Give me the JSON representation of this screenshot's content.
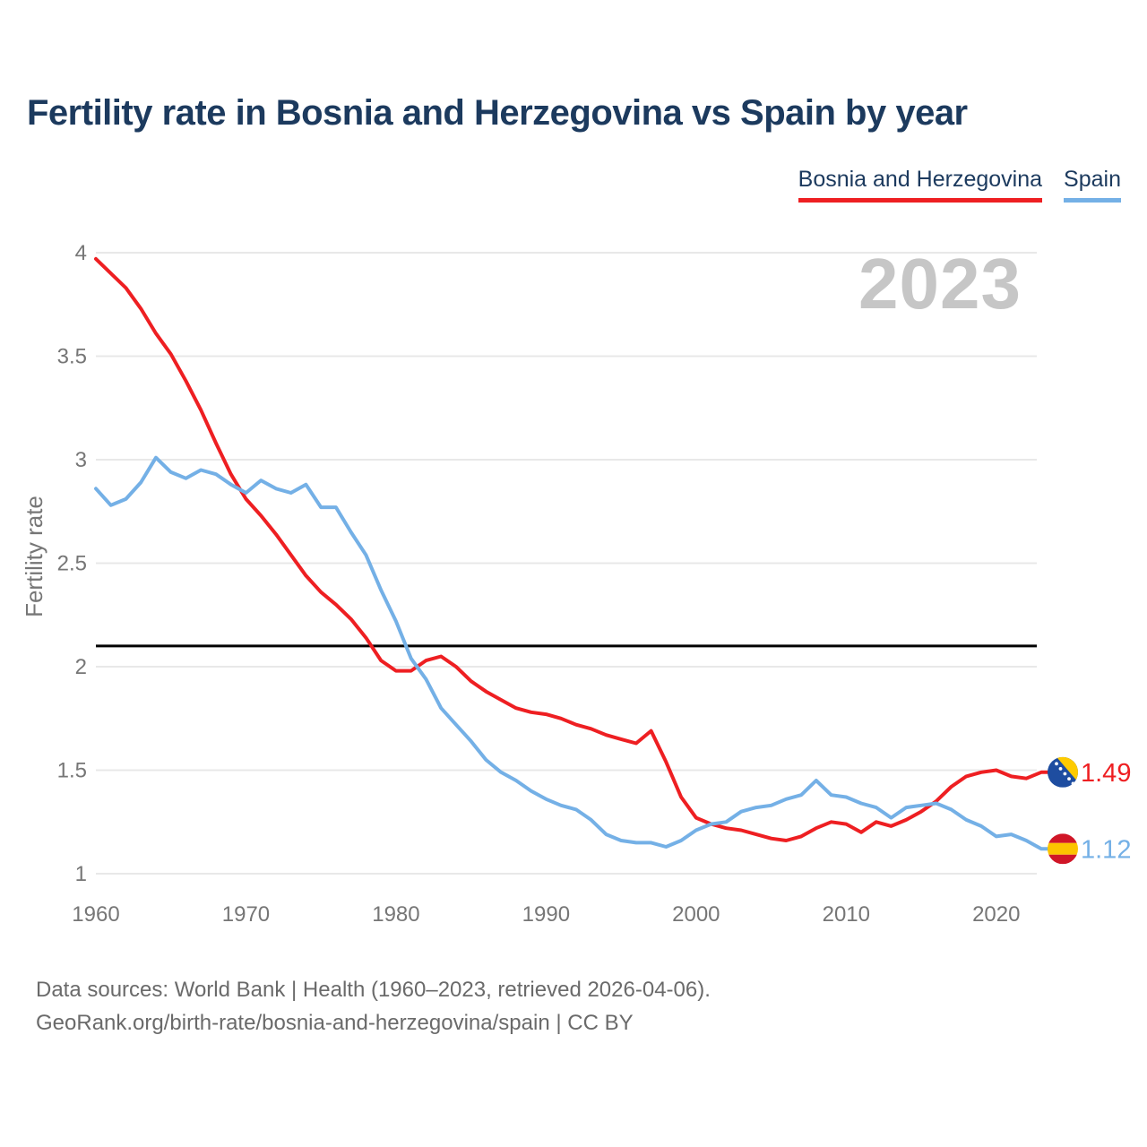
{
  "header": {
    "title": "Fertility rate in Bosnia and Herzegovina vs Spain by year"
  },
  "legend": {
    "items": [
      {
        "label": "Bosnia and Herzegovina",
        "color": "#ee1f22"
      },
      {
        "label": "Spain",
        "color": "#74b0e6"
      }
    ]
  },
  "footer": {
    "line1": "Data sources: World Bank | Health (1960–2023, retrieved 2026-04-06).",
    "line2": "GeoRank.org/birth-rate/bosnia-and-herzegovina/spain | CC BY"
  },
  "chart_data": {
    "type": "line",
    "title": "Fertility rate in Bosnia and Herzegovina vs Spain by year",
    "xlabel": "",
    "ylabel": "Fertility rate",
    "watermark": "2023",
    "grid": true,
    "legend_position": "top-right",
    "xlim": [
      1960,
      2023
    ],
    "ylim": [
      1,
      4
    ],
    "x_ticks": [
      1960,
      1970,
      1980,
      1990,
      2000,
      2010,
      2020
    ],
    "y_ticks": [
      4,
      3.5,
      3,
      2.5,
      2,
      1.5,
      1
    ],
    "reference_line": {
      "value": 2.1,
      "color": "#000000"
    },
    "years": [
      1960,
      1961,
      1962,
      1963,
      1964,
      1965,
      1966,
      1967,
      1968,
      1969,
      1970,
      1971,
      1972,
      1973,
      1974,
      1975,
      1976,
      1977,
      1978,
      1979,
      1980,
      1981,
      1982,
      1983,
      1984,
      1985,
      1986,
      1987,
      1988,
      1989,
      1990,
      1991,
      1992,
      1993,
      1994,
      1995,
      1996,
      1997,
      1998,
      1999,
      2000,
      2001,
      2002,
      2003,
      2004,
      2005,
      2006,
      2007,
      2008,
      2009,
      2010,
      2011,
      2012,
      2013,
      2014,
      2015,
      2016,
      2017,
      2018,
      2019,
      2020,
      2021,
      2022,
      2023
    ],
    "series": [
      {
        "name": "Bosnia and Herzegovina",
        "color": "#ee1f22",
        "end_label": "1.49",
        "flag": "bosnia-and-herzegovina",
        "values": [
          3.97,
          3.9,
          3.83,
          3.73,
          3.61,
          3.51,
          3.38,
          3.24,
          3.08,
          2.93,
          2.81,
          2.73,
          2.64,
          2.54,
          2.44,
          2.36,
          2.3,
          2.23,
          2.14,
          2.03,
          1.98,
          1.98,
          2.03,
          2.05,
          2.0,
          1.93,
          1.88,
          1.84,
          1.8,
          1.78,
          1.77,
          1.75,
          1.72,
          1.7,
          1.67,
          1.65,
          1.63,
          1.69,
          1.54,
          1.37,
          1.27,
          1.24,
          1.22,
          1.21,
          1.19,
          1.17,
          1.16,
          1.18,
          1.22,
          1.25,
          1.24,
          1.2,
          1.25,
          1.23,
          1.26,
          1.3,
          1.35,
          1.42,
          1.47,
          1.49,
          1.5,
          1.47,
          1.46,
          1.49
        ]
      },
      {
        "name": "Spain",
        "color": "#74b0e6",
        "end_label": "1.12",
        "flag": "spain",
        "values": [
          2.86,
          2.78,
          2.81,
          2.89,
          3.01,
          2.94,
          2.91,
          2.95,
          2.93,
          2.88,
          2.84,
          2.9,
          2.86,
          2.84,
          2.88,
          2.77,
          2.77,
          2.65,
          2.54,
          2.37,
          2.22,
          2.04,
          1.94,
          1.8,
          1.72,
          1.64,
          1.55,
          1.49,
          1.45,
          1.4,
          1.36,
          1.33,
          1.31,
          1.26,
          1.19,
          1.16,
          1.15,
          1.15,
          1.13,
          1.16,
          1.21,
          1.24,
          1.25,
          1.3,
          1.32,
          1.33,
          1.36,
          1.38,
          1.45,
          1.38,
          1.37,
          1.34,
          1.32,
          1.27,
          1.32,
          1.33,
          1.34,
          1.31,
          1.26,
          1.23,
          1.18,
          1.19,
          1.16,
          1.12
        ]
      }
    ],
    "flag_colors": {
      "bosnia_blue": "#1e4da0",
      "bosnia_yellow": "#fecb00",
      "bosnia_star": "#ffffff",
      "spain_red": "#d01627",
      "spain_yellow": "#fcc400"
    },
    "style": {
      "gridline_color": "#e8e8e8",
      "tick_color": "#767676",
      "watermark_color": "#c6c6c6",
      "line_width": 4
    }
  }
}
